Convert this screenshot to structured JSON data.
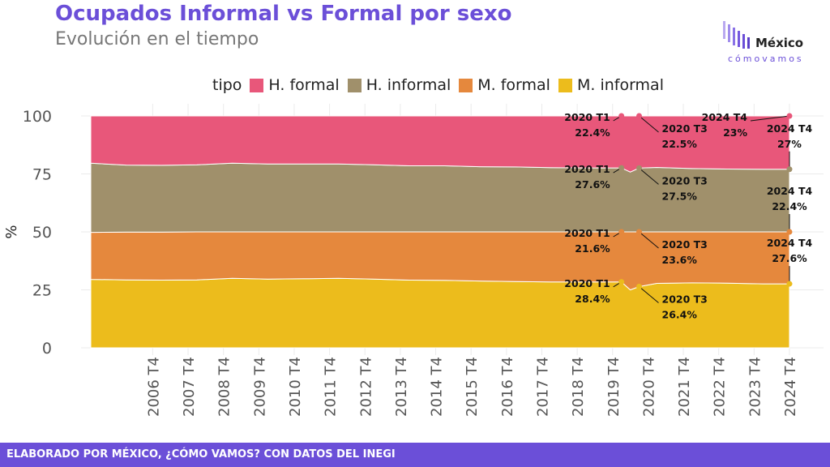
{
  "header": {
    "title": "Ocupados Informal vs Formal por sexo",
    "subtitle": "Evolución en el tiempo"
  },
  "logo": {
    "word": "México",
    "sub": "cómovamos"
  },
  "legend": {
    "title": "tipo",
    "items": [
      {
        "label": "H. formal",
        "color": "#e8577a"
      },
      {
        "label": "H. informal",
        "color": "#a0906b"
      },
      {
        "label": "M. formal",
        "color": "#e5883d"
      },
      {
        "label": "M. informal",
        "color": "#ecbc1c"
      }
    ]
  },
  "footer": {
    "text": "ELABORADO POR MÉXICO, ¿CÓMO VAMOS? CON DATOS DEL INEGI"
  },
  "chart_data": {
    "type": "area",
    "stacked": true,
    "ylabel": "%",
    "ylim": [
      0,
      100
    ],
    "yticks": [
      0,
      25,
      50,
      75,
      100
    ],
    "xlim": [
      2005.0,
      2024.75
    ],
    "xticks": [
      {
        "x": 2006.75,
        "label": "2006 T4"
      },
      {
        "x": 2007.75,
        "label": "2007 T4"
      },
      {
        "x": 2008.75,
        "label": "2008 T4"
      },
      {
        "x": 2009.75,
        "label": "2009 T4"
      },
      {
        "x": 2010.75,
        "label": "2010 T4"
      },
      {
        "x": 2011.75,
        "label": "2011 T4"
      },
      {
        "x": 2012.75,
        "label": "2012 T4"
      },
      {
        "x": 2013.75,
        "label": "2013 T4"
      },
      {
        "x": 2014.75,
        "label": "2014 T4"
      },
      {
        "x": 2015.75,
        "label": "2015 T4"
      },
      {
        "x": 2016.75,
        "label": "2016 T4"
      },
      {
        "x": 2017.75,
        "label": "2017 T4"
      },
      {
        "x": 2018.75,
        "label": "2018 T4"
      },
      {
        "x": 2019.75,
        "label": "2019 T4"
      },
      {
        "x": 2020.75,
        "label": "2020 T4"
      },
      {
        "x": 2021.75,
        "label": "2021 T4"
      },
      {
        "x": 2022.75,
        "label": "2022 T4"
      },
      {
        "x": 2023.75,
        "label": "2023 T4"
      },
      {
        "x": 2024.75,
        "label": "2024 T4"
      }
    ],
    "x": [
      2005.0,
      2006.0,
      2007.0,
      2008.0,
      2009.0,
      2010.0,
      2011.0,
      2012.0,
      2013.0,
      2014.0,
      2015.0,
      2016.0,
      2017.0,
      2018.0,
      2019.0,
      2020.0,
      2020.25,
      2020.5,
      2021.0,
      2022.0,
      2023.0,
      2024.0,
      2024.75
    ],
    "series": [
      {
        "name": "M. informal",
        "color": "#ecbc1c",
        "values": [
          29.5,
          29.3,
          29.2,
          29.3,
          30.0,
          29.6,
          29.8,
          30.0,
          29.6,
          29.2,
          29.1,
          28.8,
          28.6,
          28.4,
          28.4,
          28.4,
          25.0,
          26.4,
          27.8,
          28.0,
          27.9,
          27.6,
          27.6
        ]
      },
      {
        "name": "M. formal",
        "color": "#e5883d",
        "values": [
          20.3,
          20.6,
          20.7,
          20.7,
          20.0,
          20.4,
          20.2,
          20.0,
          20.4,
          20.8,
          20.9,
          21.2,
          21.4,
          21.6,
          21.6,
          21.6,
          25.0,
          23.6,
          22.2,
          22.0,
          22.1,
          22.4,
          22.4
        ]
      },
      {
        "name": "H. informal",
        "color": "#a0906b",
        "values": [
          29.8,
          28.9,
          28.8,
          28.9,
          29.6,
          29.3,
          29.3,
          29.3,
          28.9,
          28.5,
          28.5,
          28.1,
          28.0,
          27.7,
          27.6,
          27.6,
          25.8,
          27.5,
          27.8,
          27.3,
          27.1,
          27.0,
          27.0
        ]
      },
      {
        "name": "H. formal",
        "color": "#e8577a",
        "values": [
          20.4,
          21.2,
          21.3,
          21.1,
          20.4,
          20.7,
          20.7,
          20.7,
          21.1,
          21.5,
          21.5,
          21.9,
          22.0,
          22.3,
          22.4,
          22.4,
          24.2,
          22.5,
          22.2,
          22.7,
          22.9,
          23.0,
          23.0
        ]
      }
    ],
    "annotations": [
      {
        "x": 2020.0,
        "y": 100,
        "label": "2020 T1",
        "value": "22.4%"
      },
      {
        "x": 2020.5,
        "y": 100,
        "label": "2020 T3",
        "value": "22.5%"
      },
      {
        "x": 2024.75,
        "y": 100,
        "label": "2024 T4",
        "value": "23%"
      },
      {
        "x": 2020.0,
        "y": 77.6,
        "label": "2020 T1",
        "value": "27.6%"
      },
      {
        "x": 2020.5,
        "y": 77.5,
        "label": "2020 T3",
        "value": "27.5%"
      },
      {
        "x": 2024.75,
        "y": 77.0,
        "label": "2024 T4",
        "value": "27%"
      },
      {
        "x": 2020.0,
        "y": 50.0,
        "label": "2020 T1",
        "value": "21.6%"
      },
      {
        "x": 2020.5,
        "y": 50.0,
        "label": "2020 T3",
        "value": "23.6%"
      },
      {
        "x": 2024.75,
        "y": 50.0,
        "label": "2024 T4",
        "value": "22.4%"
      },
      {
        "x": 2020.0,
        "y": 28.4,
        "label": "2020 T1",
        "value": "28.4%"
      },
      {
        "x": 2020.5,
        "y": 26.4,
        "label": "2020 T3",
        "value": "26.4%"
      },
      {
        "x": 2024.75,
        "y": 27.6,
        "label": "2024 T4",
        "value": "27.6%"
      }
    ]
  }
}
